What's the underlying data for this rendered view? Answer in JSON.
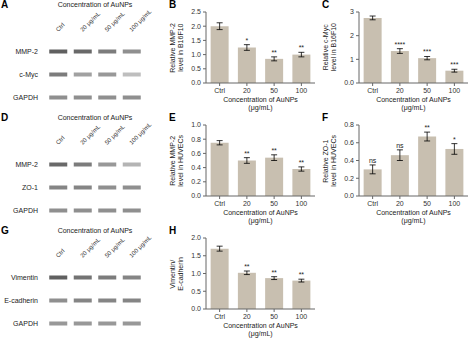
{
  "chart_data": [
    {
      "type": "heatmap",
      "title": "Concentration of AuNPs",
      "categories": [
        "Ctrl",
        "20 μg/mL",
        "50 μg/mL",
        "100 μg/mL"
      ],
      "rows": [
        "MMP-2",
        "c-Myc",
        "GAPDH"
      ],
      "cells": [
        [
          0.85,
          0.8,
          0.7,
          0.6
        ],
        [
          0.7,
          0.5,
          0.55,
          0.35
        ],
        [
          0.6,
          0.6,
          0.6,
          0.6
        ]
      ],
      "color": "#444444",
      "annotations": [
        {
          "text": "A"
        }
      ]
    },
    {
      "type": "bar",
      "categories": [
        "Ctrl",
        "20",
        "50",
        "100"
      ],
      "values": [
        2.0,
        1.25,
        0.85,
        1.0
      ],
      "errors": [
        0.12,
        0.1,
        0.07,
        0.08
      ],
      "ylabel": "Relative MMP-2\nlevel in B16F10",
      "xlabel": "Concentration of AuNPs\n(μg/mL)",
      "ylim": [
        0,
        2.5
      ],
      "yticks": [
        {
          "value": 0,
          "label": "0.0"
        },
        0.5,
        {
          "value": 1,
          "label": "1.0"
        },
        1.5,
        {
          "value": 2,
          "label": "2.0"
        },
        2.5
      ],
      "color": "#c8bfb0",
      "annotations": [
        {
          "text": "B"
        },
        {
          "text": "*",
          "category": "20"
        },
        {
          "text": "**",
          "category": "50"
        },
        {
          "text": "**",
          "category": "100"
        }
      ]
    },
    {
      "type": "bar",
      "categories": [
        "Ctrl",
        "20",
        "50",
        "100"
      ],
      "values": [
        2.75,
        1.35,
        1.05,
        0.52
      ],
      "errors": [
        0.08,
        0.1,
        0.07,
        0.06
      ],
      "ylabel": "Relative c-Myc\nlevel in B16F10",
      "xlabel": "Concentration of AuNPs\n(μg/mL)",
      "ylim": [
        0,
        3.0
      ],
      "yticks": [
        {
          "value": 0,
          "label": "0.0"
        },
        1,
        2,
        3
      ],
      "color": "#c8bfb0",
      "annotations": [
        {
          "text": "C"
        },
        {
          "text": "****",
          "category": "20"
        },
        {
          "text": "***",
          "category": "50"
        },
        {
          "text": "***",
          "category": "100"
        }
      ]
    },
    {
      "type": "heatmap",
      "title": "Concentration of AuNPs",
      "categories": [
        "Ctrl",
        "20 μg/mL",
        "50 μg/mL",
        "100 μg/mL"
      ],
      "rows": [
        "MMP-2",
        "ZO-1",
        "GAPDH"
      ],
      "cells": [
        [
          0.8,
          0.7,
          0.55,
          0.4
        ],
        [
          0.65,
          0.65,
          0.6,
          0.6
        ],
        [
          0.6,
          0.6,
          0.6,
          0.6
        ]
      ],
      "color": "#444444",
      "annotations": [
        {
          "text": "D"
        }
      ]
    },
    {
      "type": "bar",
      "categories": [
        "Ctrl",
        "20",
        "50",
        "100"
      ],
      "values": [
        0.75,
        0.5,
        0.54,
        0.38
      ],
      "errors": [
        0.03,
        0.04,
        0.04,
        0.03
      ],
      "ylabel": "Relative MMP-2\nlevel in HUVECs",
      "xlabel": "Concentration of AuNPs\n(μg/mL)",
      "ylim": [
        0,
        1.0
      ],
      "yticks": [
        {
          "value": 0,
          "label": "0.0"
        },
        0.2,
        0.4,
        0.6,
        0.8,
        {
          "value": 1,
          "label": "1.0"
        }
      ],
      "color": "#c8bfb0",
      "annotations": [
        {
          "text": "E"
        },
        {
          "text": "**",
          "category": "20"
        },
        {
          "text": "**",
          "category": "50"
        },
        {
          "text": "**",
          "category": "100"
        }
      ]
    },
    {
      "type": "bar",
      "categories": [
        "Ctrl",
        "20",
        "50",
        "100"
      ],
      "values": [
        0.3,
        0.46,
        0.67,
        0.53
      ],
      "errors": [
        0.05,
        0.06,
        0.05,
        0.06
      ],
      "ylabel": "Relative ZO-1\nlevel in HUVECs",
      "xlabel": "Concentration of AuNPs\n(μg/mL)",
      "ylim": [
        0,
        0.8
      ],
      "yticks": [
        {
          "value": 0,
          "label": "0.0"
        },
        0.2,
        0.4,
        0.6,
        0.8
      ],
      "color": "#c8bfb0",
      "annotations": [
        {
          "text": "F"
        },
        {
          "text": "ns",
          "category": "Ctrl"
        },
        {
          "text": "ns",
          "category": "20"
        },
        {
          "text": "**",
          "category": "50"
        },
        {
          "text": "*",
          "category": "100"
        }
      ]
    },
    {
      "type": "heatmap",
      "title": "Concentration of AuNPs",
      "categories": [
        "Ctrl",
        "20 μg/mL",
        "50 μg/mL",
        "100 μg/mL"
      ],
      "rows": [
        "Vimentin",
        "E-cadherin",
        "GAPDH"
      ],
      "cells": [
        [
          0.85,
          0.75,
          0.7,
          0.65
        ],
        [
          0.6,
          0.65,
          0.65,
          0.65
        ],
        [
          0.55,
          0.55,
          0.55,
          0.55
        ]
      ],
      "color": "#444444",
      "annotations": [
        {
          "text": "G"
        }
      ]
    },
    {
      "type": "bar",
      "categories": [
        "Ctrl",
        "20",
        "50",
        "100"
      ],
      "values": [
        1.7,
        1.02,
        0.87,
        0.8
      ],
      "errors": [
        0.07,
        0.05,
        0.04,
        0.04
      ],
      "ylabel": "Vimentin/\nE-cadherin",
      "xlabel": "Concentration of AuNPs\n(μg/mL)",
      "ylim": [
        0,
        2.0
      ],
      "yticks": [
        {
          "value": 0,
          "label": "0.0"
        },
        0.5,
        {
          "value": 1,
          "label": "1.0"
        },
        1.5,
        {
          "value": 2,
          "label": "2.0"
        }
      ],
      "color": "#c8bfb0",
      "annotations": [
        {
          "text": "H"
        },
        {
          "text": "**",
          "category": "20"
        },
        {
          "text": "**",
          "category": "50"
        },
        {
          "text": "**",
          "category": "100"
        }
      ]
    }
  ]
}
